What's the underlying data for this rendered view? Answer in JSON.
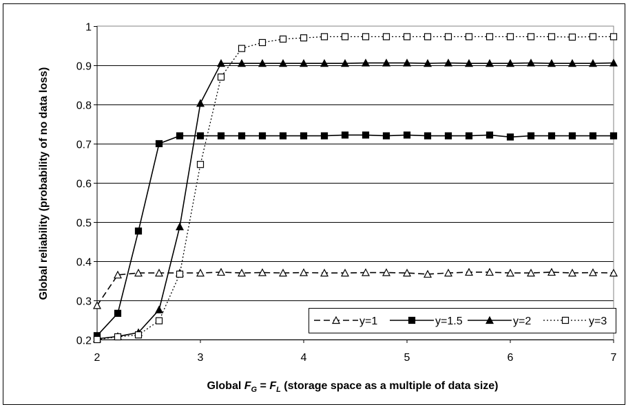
{
  "chart_data": {
    "type": "line",
    "xlabel": {
      "prefix": "Global ",
      "fg_main": "F",
      "fg_sub": "G",
      "equals": " = ",
      "fl_main": "F",
      "fl_sub": "L",
      "suffix": " (storage space as a multiple of data size)"
    },
    "ylabel": "Global reliability (probability of no data loss)",
    "xlim": [
      2,
      7
    ],
    "ylim": [
      0.2,
      1
    ],
    "x_ticks": [
      "2",
      "3",
      "4",
      "5",
      "6",
      "7"
    ],
    "y_ticks": [
      "0.2",
      "0.3",
      "0.4",
      "0.5",
      "0.6",
      "0.7",
      "0.8",
      "0.9",
      "1"
    ],
    "grid": "horizontal",
    "legend_position": "bottom-right",
    "x": [
      2.0,
      2.2,
      2.4,
      2.6,
      2.8,
      3.0,
      3.2,
      3.4,
      3.6,
      3.8,
      4.0,
      4.2,
      4.4,
      4.6,
      4.8,
      5.0,
      5.2,
      5.4,
      5.6,
      5.8,
      6.0,
      6.2,
      6.4,
      6.6,
      6.8,
      7.0
    ],
    "series": [
      {
        "name": "y=1",
        "marker": "open-triangle",
        "line": "dashed",
        "color": "#000000",
        "values": [
          0.287,
          0.365,
          0.37,
          0.37,
          0.37,
          0.37,
          0.372,
          0.37,
          0.371,
          0.37,
          0.371,
          0.37,
          0.37,
          0.371,
          0.371,
          0.37,
          0.367,
          0.37,
          0.372,
          0.372,
          0.37,
          0.37,
          0.372,
          0.37,
          0.371,
          0.37
        ]
      },
      {
        "name": "y=1.5",
        "marker": "filled-square",
        "line": "solid",
        "color": "#000000",
        "values": [
          0.21,
          0.267,
          0.477,
          0.7,
          0.72,
          0.72,
          0.72,
          0.72,
          0.72,
          0.72,
          0.72,
          0.72,
          0.722,
          0.722,
          0.72,
          0.722,
          0.72,
          0.72,
          0.72,
          0.722,
          0.717,
          0.72,
          0.72,
          0.72,
          0.72,
          0.72
        ]
      },
      {
        "name": "y=2",
        "marker": "filled-triangle",
        "line": "solid",
        "color": "#000000",
        "values": [
          0.202,
          0.208,
          0.218,
          0.276,
          0.488,
          0.803,
          0.905,
          0.905,
          0.905,
          0.905,
          0.905,
          0.905,
          0.905,
          0.906,
          0.906,
          0.906,
          0.905,
          0.906,
          0.905,
          0.905,
          0.905,
          0.906,
          0.905,
          0.905,
          0.905,
          0.906
        ]
      },
      {
        "name": "y=3",
        "marker": "open-square",
        "line": "dotted",
        "color": "#000000",
        "values": [
          0.2,
          0.207,
          0.212,
          0.248,
          0.367,
          0.647,
          0.87,
          0.943,
          0.958,
          0.967,
          0.97,
          0.973,
          0.973,
          0.973,
          0.973,
          0.973,
          0.973,
          0.973,
          0.973,
          0.973,
          0.973,
          0.973,
          0.973,
          0.972,
          0.973,
          0.973
        ]
      }
    ]
  }
}
